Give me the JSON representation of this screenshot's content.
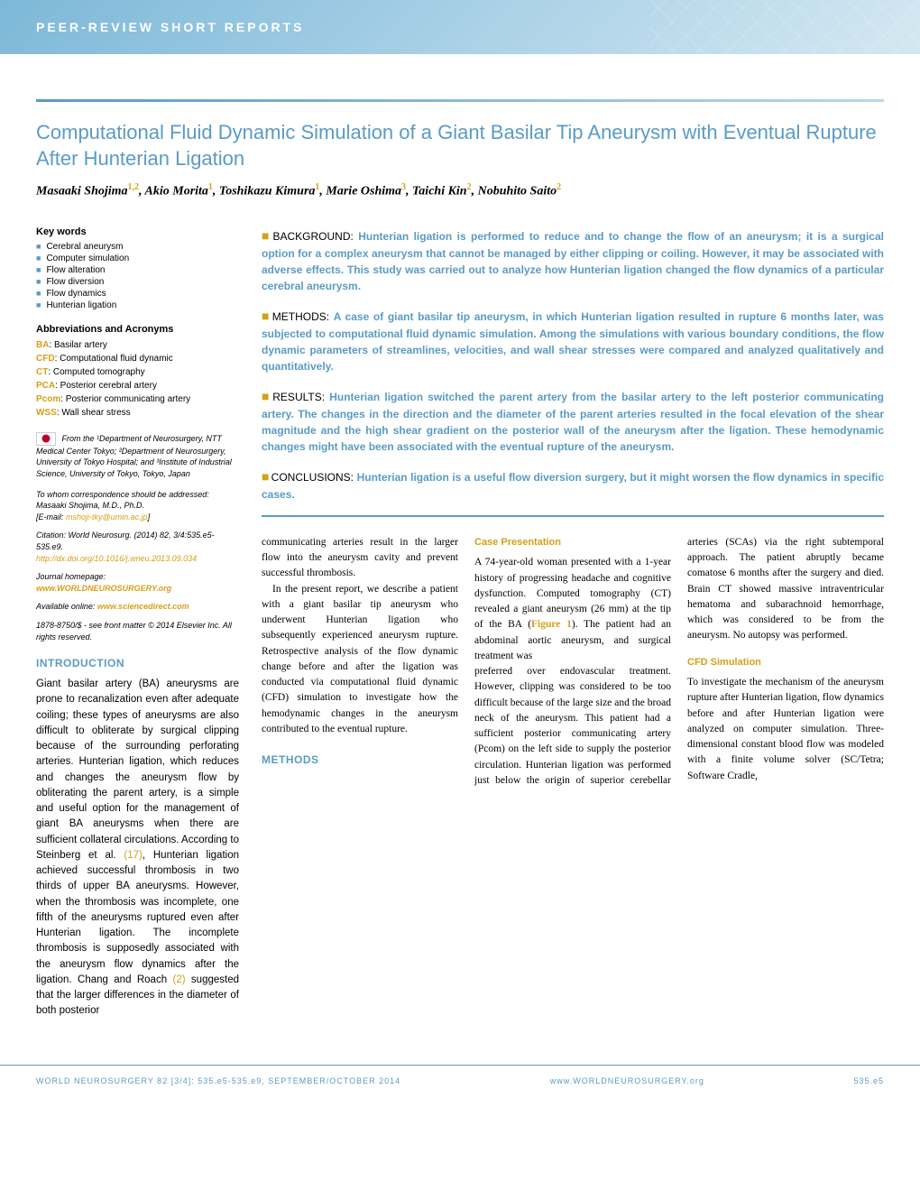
{
  "banner": {
    "text": "PEER-REVIEW SHORT REPORTS"
  },
  "article": {
    "title": "Computational Fluid Dynamic Simulation of a Giant Basilar Tip Aneurysm with Eventual Rupture After Hunterian Ligation",
    "authors_html": "Masaaki Shojima<sup>1,2</sup>, Akio Morita<sup>1</sup>, Toshikazu Kimura<sup>1</sup>, Marie Oshima<sup>3</sup>, Taichi Kin<sup>2</sup>, Nobuhito Saito<sup>2</sup>"
  },
  "sidebar": {
    "keywords_heading": "Key words",
    "keywords": [
      "Cerebral aneurysm",
      "Computer simulation",
      "Flow alteration",
      "Flow diversion",
      "Flow dynamics",
      "Hunterian ligation"
    ],
    "abbrev_heading": "Abbreviations and Acronyms",
    "abbrevs": [
      {
        "k": "BA",
        "v": "Basilar artery"
      },
      {
        "k": "CFD",
        "v": "Computational fluid dynamic"
      },
      {
        "k": "CT",
        "v": "Computed tomography"
      },
      {
        "k": "PCA",
        "v": "Posterior cerebral artery"
      },
      {
        "k": "Pcom",
        "v": "Posterior communicating artery"
      },
      {
        "k": "WSS",
        "v": "Wall shear stress"
      }
    ],
    "affiliation": "From the ¹Department of Neurosurgery, NTT Medical Center Tokyo; ²Department of Neurosurgery, University of Tokyo Hospital; and ³Institute of Industrial Science, University of Tokyo, Tokyo, Japan",
    "corr_label": "To whom correspondence should be addressed:",
    "corr_name": "Masaaki Shojima, M.D., Ph.D.",
    "corr_email_label": "[E-mail: ",
    "corr_email": "mshoji-tky@umin.ac.jp",
    "corr_email_close": "]",
    "citation": "Citation: World Neurosurg. (2014) 82, 3/4:535.e5-535.e9.",
    "doi": "http://dx.doi.org/10.1016/j.wneu.2013.09.034",
    "homepage_label": "Journal homepage: ",
    "homepage": "www.WORLDNEUROSURGERY.org",
    "online_label": "Available online: ",
    "online": "www.sciencedirect.com",
    "copyright": "1878-8750/$ - see front matter © 2014 Elsevier Inc. All rights reserved."
  },
  "abstract": {
    "background_label": "BACKGROUND:",
    "background": "Hunterian ligation is performed to reduce and to change the flow of an aneurysm; it is a surgical option for a complex aneurysm that cannot be managed by either clipping or coiling. However, it may be associated with adverse effects. This study was carried out to analyze how Hunterian ligation changed the flow dynamics of a particular cerebral aneurysm.",
    "methods_label": "METHODS:",
    "methods": "A case of giant basilar tip aneurysm, in which Hunterian ligation resulted in rupture 6 months later, was subjected to computational fluid dynamic simulation. Among the simulations with various boundary conditions, the flow dynamic parameters of streamlines, velocities, and wall shear stresses were compared and analyzed qualitatively and quantitatively.",
    "results_label": "RESULTS:",
    "results": "Hunterian ligation switched the parent artery from the basilar artery to the left posterior communicating artery. The changes in the direction and the diameter of the parent arteries resulted in the focal elevation of the shear magnitude and the high shear gradient on the posterior wall of the aneurysm after the ligation. These hemodynamic changes might have been associated with the eventual rupture of the aneurysm.",
    "conclusions_label": "CONCLUSIONS:",
    "conclusions": "Hunterian ligation is a useful flow diversion surgery, but it might worsen the flow dynamics in specific cases."
  },
  "sections": {
    "introduction_heading": "INTRODUCTION",
    "introduction": "Giant basilar artery (BA) aneurysms are prone to recanalization even after adequate coiling; these types of aneurysms are also difficult to obliterate by surgical clipping because of the surrounding perforating arteries. Hunterian ligation, which reduces and changes the aneurysm flow by obliterating the parent artery, is a simple and useful option for the management of giant BA aneurysms when there are sufficient collateral circulations. According to Steinberg et al. (17), Hunterian ligation achieved successful thrombosis in two thirds of upper BA aneurysms. However, when the thrombosis was incomplete, one fifth of the aneurysms ruptured even after Hunterian ligation. The incomplete thrombosis is supposedly associated with the aneurysm flow dynamics after the ligation. Chang and Roach (2) suggested that the larger differences in the diameter of both posterior",
    "col2_p1": "communicating arteries result in the larger flow into the aneurysm cavity and prevent successful thrombosis.",
    "col2_p2": "In the present report, we describe a patient with a giant basilar tip aneurysm who underwent Hunterian ligation who subsequently experienced aneurysm rupture. Retrospective analysis of the flow dynamic change before and after the ligation was conducted via computational fluid dynamic (CFD) simulation to investigate how the hemodynamic changes in the aneurysm contributed to the eventual rupture.",
    "methods_heading": "METHODS",
    "case_heading": "Case Presentation",
    "case_text": "A 74-year-old woman presented with a 1-year history of progressing headache and cognitive dysfunction. Computed tomography (CT) revealed a giant aneurysm (26 mm) at the tip of the BA (Figure 1). The patient had an abdominal aortic aneurysm, and surgical treatment was",
    "col3_p1": "preferred over endovascular treatment. However, clipping was considered to be too difficult because of the large size and the broad neck of the aneurysm. This patient had a sufficient posterior communicating artery (Pcom) on the left side to supply the posterior circulation. Hunterian ligation was performed just below the origin of superior cerebellar arteries (SCAs) via the right subtemporal approach. The patient abruptly became comatose 6 months after the surgery and died. Brain CT showed massive intraventricular hematoma and subarachnoid hemorrhage, which was considered to be from the aneurysm. No autopsy was performed.",
    "cfd_heading": "CFD Simulation",
    "cfd_text": "To investigate the mechanism of the aneurysm rupture after Hunterian ligation, flow dynamics before and after Hunterian ligation were analyzed on computer simulation. Three-dimensional constant blood flow was modeled with a finite volume solver (SC/Tetra; Software Cradle,"
  },
  "footer": {
    "left": "WORLD NEUROSURGERY 82 [3/4]: 535.e5-535.e9, SEPTEMBER/OCTOBER 2014",
    "center": "www.WORLDNEUROSURGERY.org",
    "right": "535.e5"
  },
  "colors": {
    "accent_blue": "#5a9bc4",
    "accent_gold": "#d4a017",
    "banner_grad_start": "#7db8d8",
    "banner_grad_end": "#d4e8f2"
  }
}
